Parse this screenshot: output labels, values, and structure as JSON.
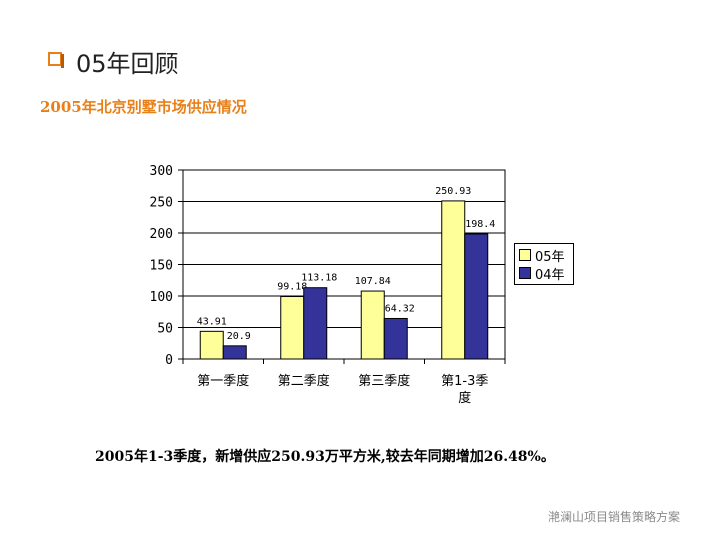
{
  "slide": {
    "title": "05年回顾",
    "subtitle": "2005年北京别墅市场供应情况",
    "summary": "2005年1-3季度，新增供应250.93万平方米,较去年同期增加26.48%。",
    "footer": "滟澜山项目销售策略方案",
    "accent_color": "#e8801a"
  },
  "chart_data": {
    "type": "bar",
    "categories": [
      "第一季度",
      "第二季度",
      "第三季度",
      "第1-3季度"
    ],
    "category_lines": [
      [
        "第一季度"
      ],
      [
        "第二季度"
      ],
      [
        "第三季度"
      ],
      [
        "第1-3季",
        "度"
      ]
    ],
    "series": [
      {
        "name": "05年",
        "values": [
          43.91,
          99.18,
          107.84,
          250.93
        ],
        "labels": [
          "43.91",
          "99.18",
          "107.84",
          "250.93"
        ],
        "color": "#ffff99"
      },
      {
        "name": "04年",
        "values": [
          20.9,
          113.18,
          64.32,
          198.4
        ],
        "labels": [
          "20.9",
          "113.18",
          "64.32",
          "198.4"
        ],
        "color": "#333399"
      }
    ],
    "ylim": [
      0,
      300
    ],
    "yticks": [
      0,
      50,
      100,
      150,
      200,
      250,
      300
    ],
    "grid": true,
    "legend": "right"
  }
}
